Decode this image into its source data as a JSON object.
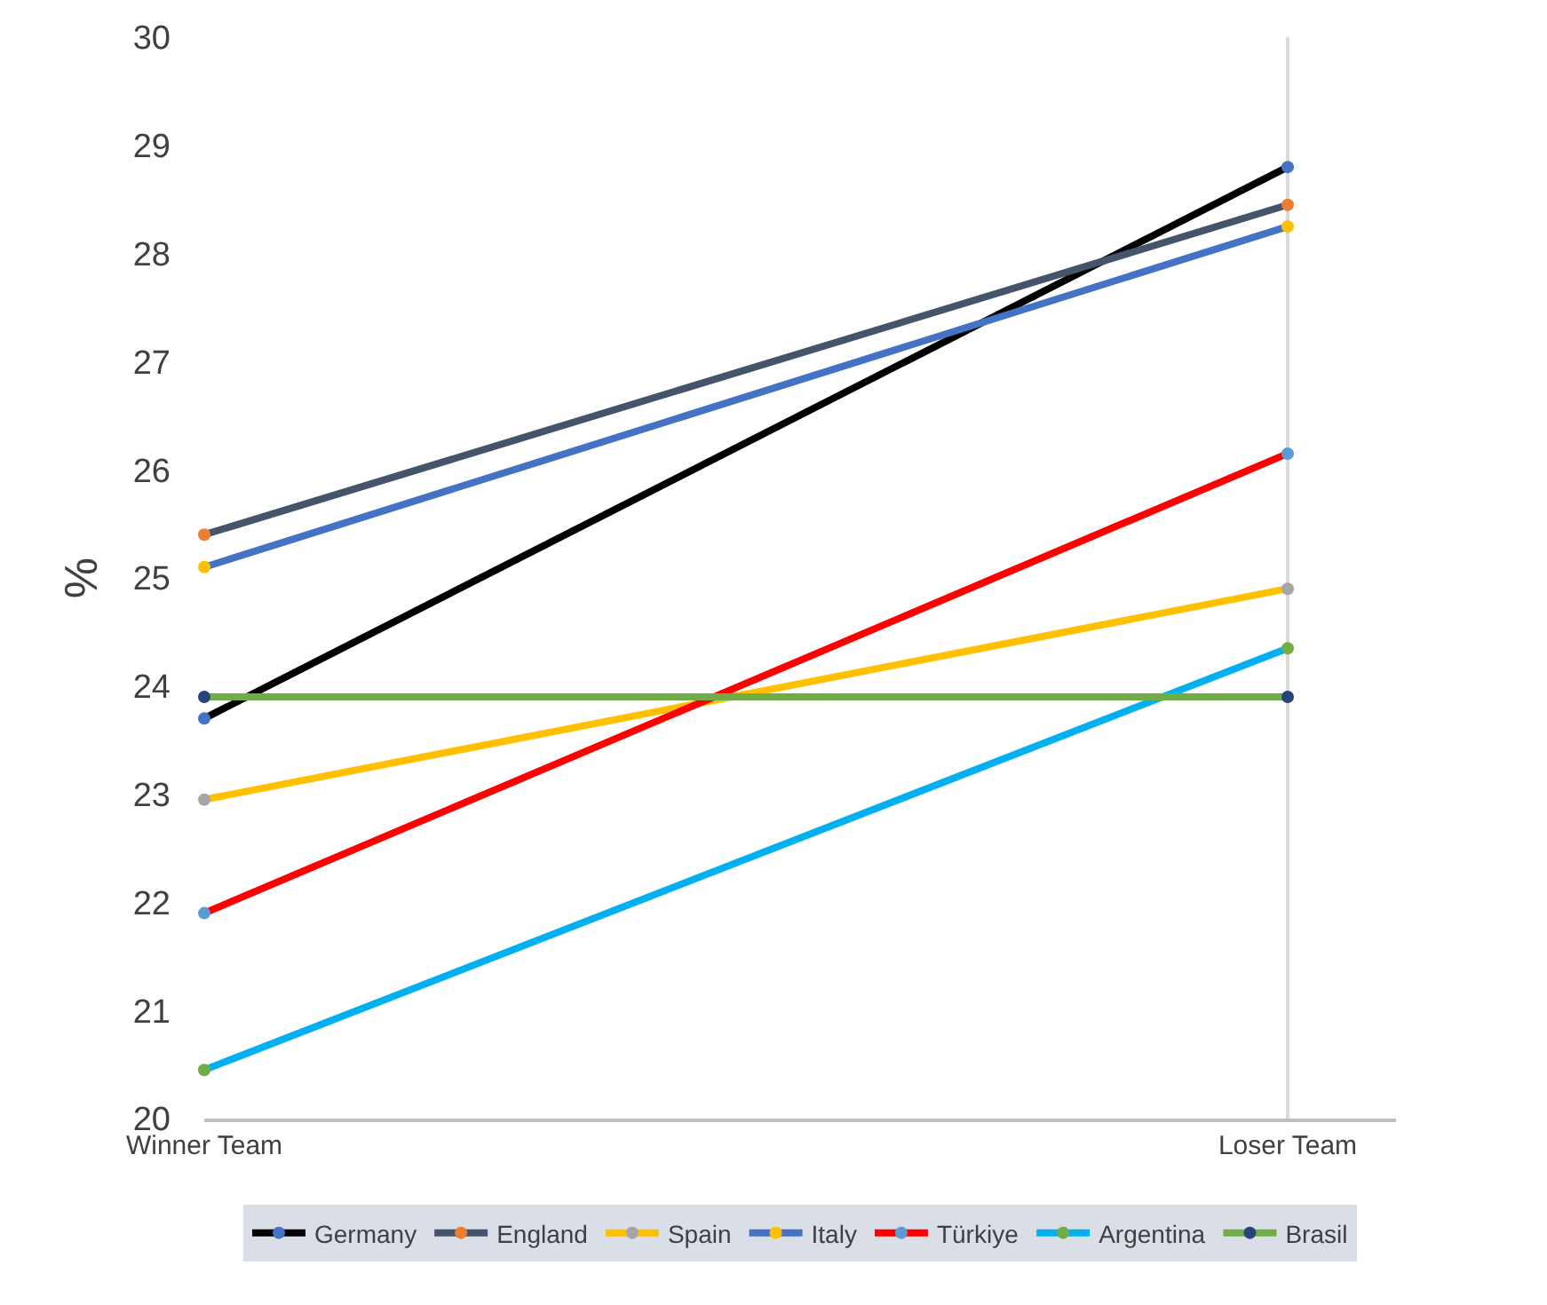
{
  "chart_data": {
    "type": "line",
    "ylabel": "%",
    "categories": [
      "Winner Team",
      "Loser Team"
    ],
    "ylim": [
      20,
      30
    ],
    "yticks": [
      20,
      21,
      22,
      23,
      24,
      25,
      26,
      27,
      28,
      29,
      30
    ],
    "grid": "x",
    "legend": "bottom",
    "marker": "circle",
    "line_style": "solid",
    "series": [
      {
        "name": "Germany",
        "color": "#000000",
        "colors": [
          "#4472c4",
          "#4472c4"
        ],
        "values": [
          23.7,
          28.8
        ]
      },
      {
        "name": "England",
        "color": "#44546a",
        "colors": [
          "#ed7d31",
          "#ed7d31"
        ],
        "values": [
          25.4,
          28.45
        ]
      },
      {
        "name": "Spain",
        "color": "#ffc000",
        "colors": [
          "#a5a5a5",
          "#a5a5a5"
        ],
        "values": [
          22.95,
          24.9
        ]
      },
      {
        "name": "Italy",
        "color": "#4472c4",
        "colors": [
          "#ffc000",
          "#ffc000"
        ],
        "values": [
          25.1,
          28.25
        ]
      },
      {
        "name": "Türkiye",
        "color": "#ff0000",
        "colors": [
          "#5b9bd5",
          "#5b9bd5"
        ],
        "values": [
          21.9,
          26.15
        ]
      },
      {
        "name": "Argentina",
        "color": "#00b0f0",
        "colors": [
          "#70ad47",
          "#70ad47"
        ],
        "values": [
          20.45,
          24.35
        ]
      },
      {
        "name": "Brasil",
        "color": "#70ad47",
        "colors": [
          "#264478",
          "#264478"
        ],
        "values": [
          23.9,
          23.9
        ]
      }
    ]
  }
}
